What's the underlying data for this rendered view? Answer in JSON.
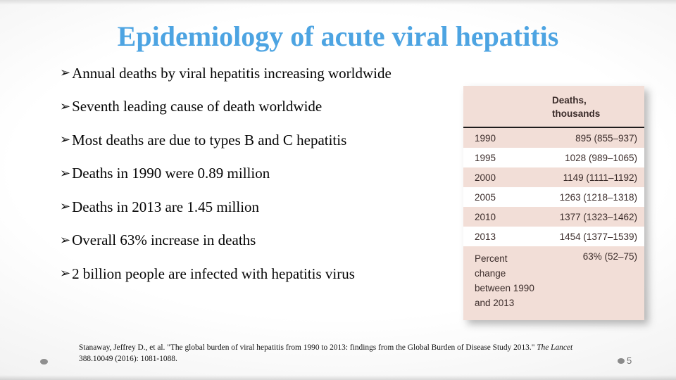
{
  "slide": {
    "title": "Epidemiology of acute viral hepatitis",
    "title_color": "#4da4e2",
    "bullet_marker": "➢",
    "bullets": [
      "Annual deaths by viral hepatitis increasing worldwide",
      "Seventh leading cause of death worldwide",
      "Most deaths are due to types B and C hepatitis",
      "Deaths in 1990 were 0.89 million",
      "Deaths in 2013  are 1.45 million",
      "Overall 63% increase in deaths",
      "2 billion people are infected with hepatitis virus"
    ],
    "page_number": "5"
  },
  "table": {
    "header": "Deaths, thousands",
    "bg_color": "#f2ded7",
    "alt_row_color": "#ffffff",
    "text_color": "#3b2c2a",
    "rows": [
      {
        "year": "1990",
        "value": "895 (855–937)"
      },
      {
        "year": "1995",
        "value": "1028 (989–1065)"
      },
      {
        "year": "2000",
        "value": "1149 (1111–1192)"
      },
      {
        "year": "2005",
        "value": "1263 (1218–1318)"
      },
      {
        "year": "2010",
        "value": "1377 (1323–1462)"
      },
      {
        "year": "2013",
        "value": "1454 (1377–1539)"
      }
    ],
    "footer_row": {
      "label": "Percent change between 1990 and 2013",
      "value": "63% (52–75)"
    }
  },
  "citation": {
    "text_before": "Stanaway, Jeffrey D., et al. \"The global burden of viral hepatitis from 1990 to 2013: findings from the Global Burden of Disease Study 2013.\" ",
    "journal": "The Lancet",
    "text_after": " 388.10049 (2016): 1081-1088."
  }
}
